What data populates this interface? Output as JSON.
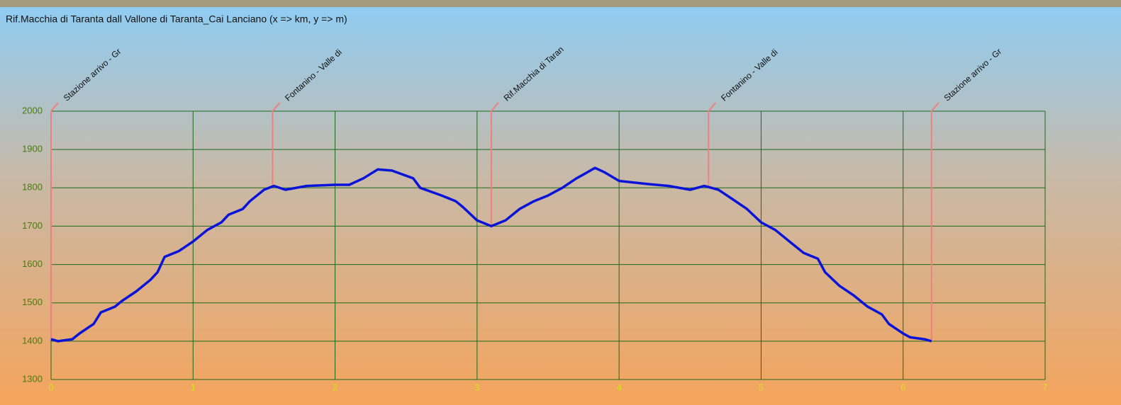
{
  "chart_data": {
    "type": "line",
    "title": "Rif.Macchia di Taranta dall Vallone di Taranta_Cai Lanciano (x => km, y => m)",
    "x": [
      0,
      0.05,
      0.15,
      0.2,
      0.3,
      0.35,
      0.45,
      0.5,
      0.6,
      0.7,
      0.75,
      0.8,
      0.9,
      1.0,
      1.1,
      1.2,
      1.25,
      1.35,
      1.4,
      1.5,
      1.57,
      1.65,
      1.8,
      2.0,
      2.1,
      2.2,
      2.3,
      2.4,
      2.55,
      2.6,
      2.75,
      2.85,
      2.9,
      3.0,
      3.1,
      3.2,
      3.3,
      3.4,
      3.5,
      3.6,
      3.7,
      3.75,
      3.83,
      3.9,
      4.0,
      4.2,
      4.35,
      4.5,
      4.6,
      4.7,
      4.8,
      4.9,
      5.0,
      5.1,
      5.2,
      5.3,
      5.4,
      5.45,
      5.55,
      5.65,
      5.75,
      5.85,
      5.9,
      6.0,
      6.05,
      6.15,
      6.2
    ],
    "values": [
      1405,
      1400,
      1405,
      1420,
      1445,
      1475,
      1490,
      1505,
      1530,
      1560,
      1580,
      1620,
      1635,
      1660,
      1690,
      1710,
      1730,
      1745,
      1765,
      1795,
      1805,
      1795,
      1805,
      1808,
      1808,
      1825,
      1848,
      1845,
      1825,
      1800,
      1780,
      1765,
      1750,
      1715,
      1700,
      1715,
      1745,
      1765,
      1780,
      1800,
      1825,
      1835,
      1852,
      1840,
      1818,
      1810,
      1805,
      1795,
      1805,
      1795,
      1770,
      1745,
      1710,
      1690,
      1660,
      1630,
      1615,
      1580,
      1545,
      1520,
      1490,
      1470,
      1445,
      1420,
      1410,
      1405,
      1400
    ],
    "color": "#0a14d8",
    "markers": [
      {
        "x": 0,
        "label": "Stazione arrivo - Gr"
      },
      {
        "x": 1.56,
        "label": "Fontanino - Valle di"
      },
      {
        "x": 3.1,
        "label": "Rif.Macchia di Taran"
      },
      {
        "x": 4.63,
        "label": "Fontanino - Valle di"
      },
      {
        "x": 6.2,
        "label": "Stazione arrivo - Gr"
      }
    ],
    "marker_color": "#f08080",
    "xlim": [
      0,
      7
    ],
    "xticks": [
      0,
      1,
      2,
      3,
      4,
      5,
      6,
      7
    ],
    "ylim": [
      1300,
      2000
    ],
    "yticks": [
      1300,
      1400,
      1500,
      1600,
      1700,
      1800,
      1900,
      2000
    ],
    "grid": true
  }
}
